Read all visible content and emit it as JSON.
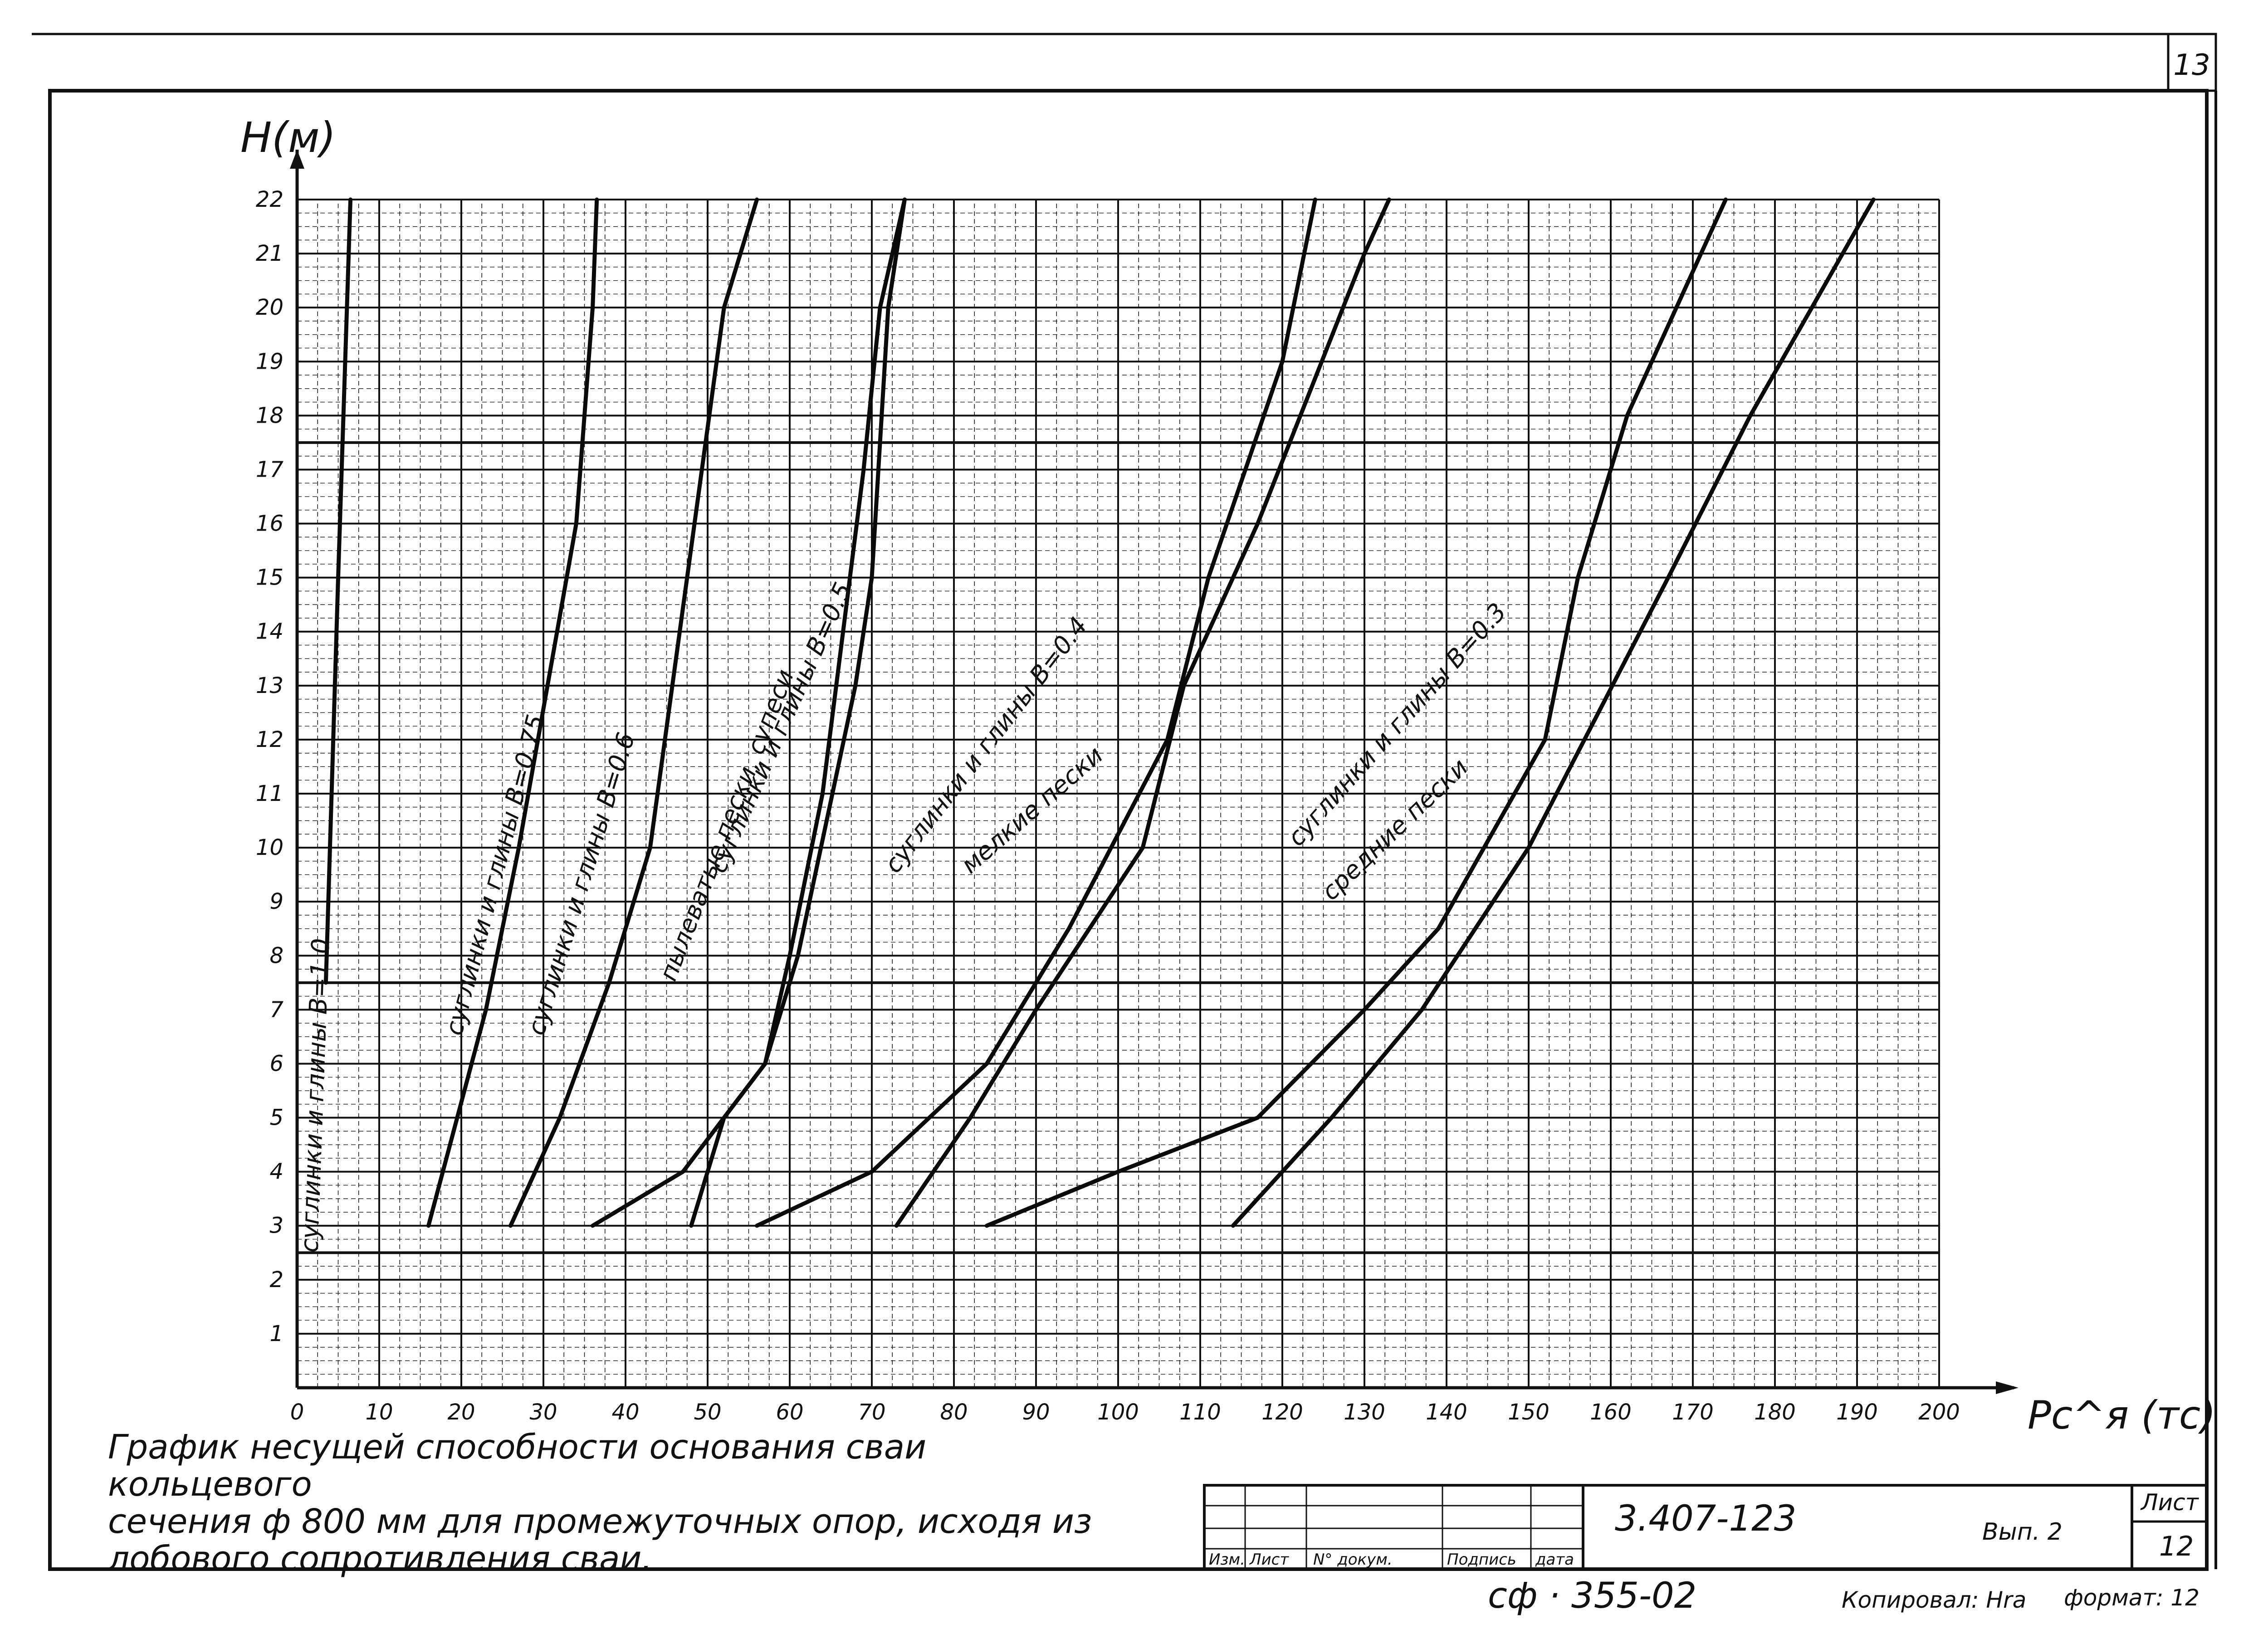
{
  "sheet_number_top": "13",
  "caption_lines": [
    "График  несущей  способности  основания  сваи  кольцевого",
    "сечения   ф 800 мм   для   промежуточных   опор, исходя из",
    "лобового   сопротивления  сваи."
  ],
  "title_block": {
    "doc_code": "3.407-123",
    "issue": "Вып. 2",
    "sheet_label": "Лист",
    "sheet_value": "12",
    "col_headers": [
      "Изм.",
      "Лист",
      "N° докум.",
      "Подпись",
      "дата"
    ]
  },
  "stamp": "сф · 355-02",
  "copied_by": "Копировал: Hra",
  "format": "формат: 12",
  "chart_data": {
    "type": "line",
    "xlabel": "Pc^я (тс)",
    "ylabel": "H(м)",
    "xlim": [
      0,
      200
    ],
    "ylim": [
      0,
      22
    ],
    "x_ticks": [
      "0",
      "10",
      "20",
      "30",
      "40",
      "50",
      "60",
      "70",
      "80",
      "90",
      "100",
      "110",
      "120",
      "130",
      "140",
      "150",
      "160",
      "170",
      "180",
      "190",
      "200"
    ],
    "y_ticks": [
      "1",
      "2",
      "3",
      "4",
      "5",
      "6",
      "7",
      "8",
      "9",
      "10",
      "11",
      "12",
      "13",
      "14",
      "15",
      "16",
      "17",
      "18",
      "19",
      "20",
      "21",
      "22"
    ],
    "grid": true,
    "series": [
      {
        "name": "суглинки и глины B=1.0",
        "points": [
          [
            3.5,
            7.5
          ],
          [
            5,
            15
          ],
          [
            6.5,
            22
          ]
        ]
      },
      {
        "name": "суглинки и глины B=0.75",
        "points": [
          [
            16,
            3
          ],
          [
            23,
            7
          ],
          [
            27,
            10
          ],
          [
            34,
            16
          ],
          [
            36,
            20
          ],
          [
            36.5,
            22
          ]
        ]
      },
      {
        "name": "суглинки и глины B=0.6",
        "points": [
          [
            26,
            3
          ],
          [
            32,
            5
          ],
          [
            38,
            7.5
          ],
          [
            43,
            10
          ],
          [
            47.5,
            15
          ],
          [
            52,
            20
          ],
          [
            56,
            22
          ]
        ]
      },
      {
        "name": "пылеватые пески, супеси",
        "points": [
          [
            36,
            3
          ],
          [
            47,
            4
          ],
          [
            52,
            5
          ],
          [
            57,
            6
          ],
          [
            60,
            8
          ],
          [
            64,
            11
          ],
          [
            69,
            17
          ],
          [
            71,
            20
          ],
          [
            74,
            22
          ]
        ]
      },
      {
        "name": "суглинки и глины B=0.5",
        "points": [
          [
            48,
            3
          ],
          [
            52,
            5
          ],
          [
            57,
            6
          ],
          [
            61,
            8
          ],
          [
            68,
            13
          ],
          [
            70,
            15
          ],
          [
            72,
            20
          ],
          [
            74,
            22
          ]
        ]
      },
      {
        "name": "суглинки и глины B=0.4",
        "points": [
          [
            56,
            3
          ],
          [
            70,
            4
          ],
          [
            84,
            6
          ],
          [
            94,
            8.5
          ],
          [
            106,
            12
          ],
          [
            111,
            15
          ],
          [
            120,
            19
          ],
          [
            124,
            22
          ]
        ]
      },
      {
        "name": "мелкие пески",
        "points": [
          [
            73,
            3
          ],
          [
            82,
            5
          ],
          [
            90,
            7
          ],
          [
            103,
            10
          ],
          [
            108,
            13
          ],
          [
            117,
            16
          ],
          [
            130,
            21
          ],
          [
            133,
            22
          ]
        ]
      },
      {
        "name": "суглинки и глины B=0.3",
        "points": [
          [
            84,
            3
          ],
          [
            100,
            4
          ],
          [
            117,
            5
          ],
          [
            130,
            7
          ],
          [
            139,
            8.5
          ],
          [
            152,
            12
          ],
          [
            156,
            15
          ],
          [
            162,
            18
          ],
          [
            174,
            22
          ]
        ]
      },
      {
        "name": "средние пески",
        "points": [
          [
            114,
            3
          ],
          [
            126,
            5
          ],
          [
            137,
            7
          ],
          [
            150,
            10
          ],
          [
            167,
            15
          ],
          [
            177,
            18
          ],
          [
            192,
            22
          ]
        ]
      }
    ],
    "annotations": [
      {
        "text": "суглинки и глины B=1.0"
      },
      {
        "text": "суглинки и глины B=0.75"
      },
      {
        "text": "суглинки и глины B=0.6"
      },
      {
        "text": "пылеватые пески, супеси"
      },
      {
        "text": "суглинки и глины B=0.5"
      },
      {
        "text": "суглинки и глины B=0.4"
      },
      {
        "text": "мелкие пески"
      },
      {
        "text": "суглинки и глины B=0.3"
      },
      {
        "text": "средние пески"
      }
    ]
  }
}
